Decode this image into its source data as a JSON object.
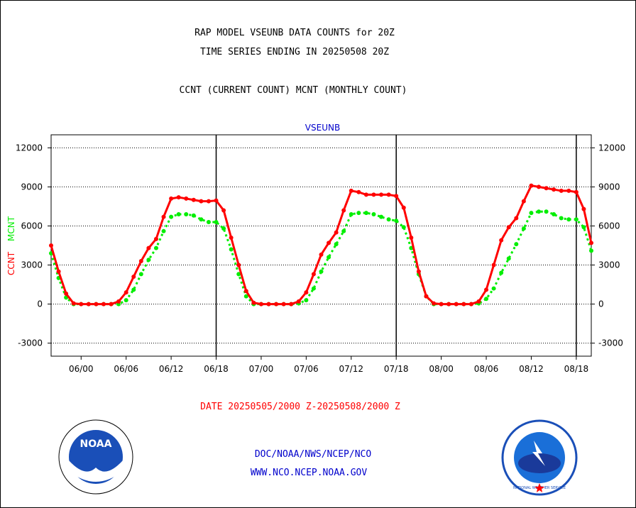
{
  "header": {
    "title_line1": "RAP MODEL VSEUNB DATA COUNTS for 20Z",
    "title_line2": "TIME SERIES ENDING IN 20250508 20Z",
    "subtitle": "CCNT (CURRENT COUNT) MCNT (MONTHLY COUNT)"
  },
  "footer": {
    "date_range": "DATE 20250505/2000 Z-20250508/2000 Z",
    "org_path": "DOC/NOAA/NWS/NCEP/NCO",
    "website": "WWW.NCO.NCEP.NOAA.GOV",
    "noaa_logo_text": "NOAA",
    "nws_seal_text": "NATIONAL WEATHER SERVICE"
  },
  "chart_data": {
    "type": "line",
    "title": "VSEUNB",
    "ylabel_left_ccnt": "CCNT",
    "ylabel_left_mcnt": "MCNT",
    "ylim": [
      -4000,
      13000
    ],
    "yticks": [
      -3000,
      0,
      3000,
      6000,
      9000,
      12000
    ],
    "ytick_labels": [
      "-3000",
      "0",
      "3000",
      "6000",
      "9000",
      "12000"
    ],
    "xlim": [
      -4,
      68
    ],
    "xticks": [
      0,
      6,
      12,
      18,
      24,
      30,
      36,
      42,
      48,
      54,
      60,
      66
    ],
    "xtick_labels": [
      "06/00",
      "06/06",
      "06/12",
      "06/18",
      "07/00",
      "07/06",
      "07/12",
      "07/18",
      "08/00",
      "08/06",
      "08/12",
      "08/18"
    ],
    "day_dividers": [
      18,
      42,
      66
    ],
    "grid": true,
    "colors": {
      "ccnt": "#ff0000",
      "mcnt": "#00ee00",
      "title": "#0000cc",
      "footer_date": "#ff0000",
      "footer_links": "#0000cc"
    },
    "series": [
      {
        "name": "CCNT",
        "x": [
          -4,
          -3,
          -2,
          -1,
          0,
          1,
          2,
          3,
          4,
          5,
          6,
          7,
          8,
          9,
          10,
          11,
          12,
          13,
          14,
          15,
          16,
          17,
          18,
          19,
          20,
          21,
          22,
          23,
          24,
          25,
          26,
          27,
          28,
          29,
          30,
          31,
          32,
          33,
          34,
          35,
          36,
          37,
          38,
          39,
          40,
          41,
          42,
          43,
          44,
          45,
          46,
          47,
          48,
          49,
          50,
          51,
          52,
          53,
          54,
          55,
          56,
          57,
          58,
          59,
          60,
          61,
          62,
          63,
          64,
          65,
          66,
          67,
          68
        ],
        "values": [
          4500,
          2500,
          800,
          50,
          0,
          0,
          0,
          0,
          0,
          200,
          900,
          2100,
          3300,
          4300,
          5000,
          6700,
          8100,
          8200,
          8100,
          8000,
          7900,
          7900,
          7950,
          7200,
          5100,
          3000,
          1000,
          100,
          0,
          0,
          0,
          0,
          0,
          200,
          900,
          2300,
          3800,
          4700,
          5500,
          7200,
          8700,
          8600,
          8400,
          8400,
          8400,
          8400,
          8300,
          7400,
          5100,
          2500,
          600,
          50,
          0,
          0,
          0,
          0,
          0,
          200,
          1100,
          3000,
          4900,
          5900,
          6600,
          7900,
          9100,
          9000,
          8900,
          8800,
          8700,
          8700,
          8600,
          7300,
          4700
        ]
      },
      {
        "name": "MCNT",
        "x": [
          -4,
          -3,
          -2,
          -1,
          0,
          1,
          2,
          3,
          4,
          5,
          6,
          7,
          8,
          9,
          10,
          11,
          12,
          13,
          14,
          15,
          16,
          17,
          18,
          19,
          20,
          21,
          22,
          23,
          24,
          25,
          26,
          27,
          28,
          29,
          30,
          31,
          32,
          33,
          34,
          35,
          36,
          37,
          38,
          39,
          40,
          41,
          42,
          43,
          44,
          45,
          46,
          47,
          48,
          49,
          50,
          51,
          52,
          53,
          54,
          55,
          56,
          57,
          58,
          59,
          60,
          61,
          62,
          63,
          64,
          65,
          66,
          67,
          68
        ],
        "values": [
          3900,
          2000,
          500,
          0,
          0,
          0,
          0,
          0,
          0,
          0,
          300,
          1100,
          2300,
          3400,
          4300,
          5600,
          6700,
          6900,
          6900,
          6800,
          6500,
          6300,
          6300,
          5800,
          4200,
          2300,
          600,
          0,
          0,
          0,
          0,
          0,
          0,
          50,
          300,
          1200,
          2500,
          3600,
          4600,
          5600,
          6900,
          7000,
          7000,
          6900,
          6700,
          6500,
          6400,
          5900,
          4300,
          2300,
          600,
          0,
          0,
          0,
          0,
          0,
          0,
          50,
          400,
          1200,
          2400,
          3500,
          4600,
          5800,
          7000,
          7100,
          7100,
          6900,
          6600,
          6500,
          6500,
          5900,
          4100
        ]
      }
    ]
  }
}
